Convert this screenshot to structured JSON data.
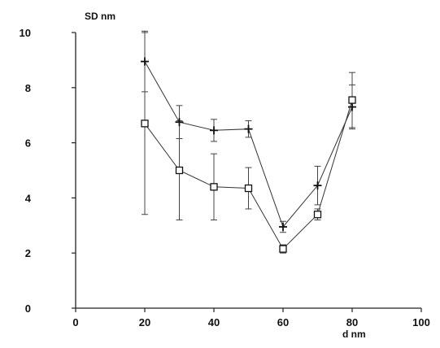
{
  "chart_data": {
    "type": "line",
    "title": "",
    "xlabel": "d nm",
    "ylabel": "SD nm",
    "xlim": [
      0,
      100
    ],
    "ylim": [
      0,
      10
    ],
    "x_ticks": [
      0,
      20,
      40,
      60,
      80,
      100
    ],
    "y_ticks": [
      0,
      2,
      4,
      6,
      8,
      10
    ],
    "grid": false,
    "legend": "none",
    "series": [
      {
        "marker": "plus",
        "x": [
          20,
          30,
          40,
          50,
          60,
          70,
          80
        ],
        "y": [
          8.95,
          6.75,
          6.45,
          6.5,
          2.95,
          4.45,
          7.3
        ],
        "err": [
          1.1,
          0.6,
          0.4,
          0.3,
          0.2,
          0.7,
          0.8
        ]
      },
      {
        "marker": "square",
        "x": [
          20,
          30,
          40,
          50,
          60,
          70,
          80
        ],
        "y": [
          6.7,
          5.0,
          4.4,
          4.35,
          2.15,
          3.4,
          7.55
        ],
        "err": [
          3.3,
          1.8,
          1.2,
          0.75,
          0.15,
          0.2,
          1.0
        ]
      }
    ],
    "colors": {
      "line": "#333333",
      "axis": "#222222",
      "marker": "#111111"
    }
  }
}
